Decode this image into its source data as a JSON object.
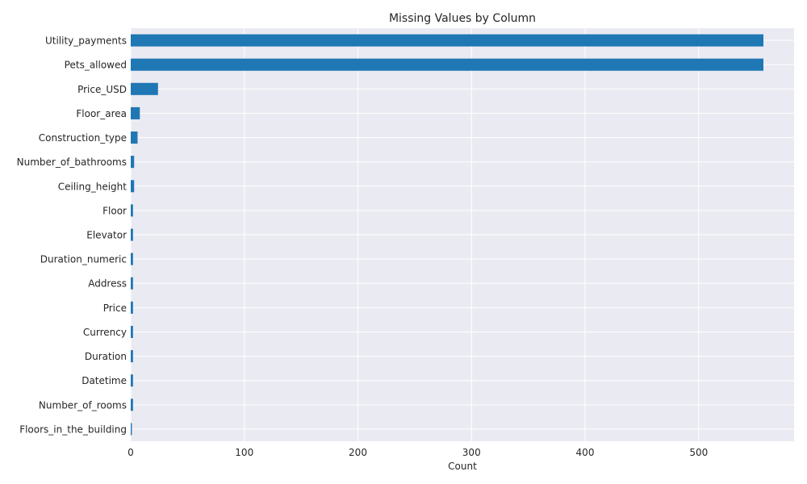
{
  "chart_data": {
    "type": "bar",
    "orientation": "horizontal",
    "title": "Missing Values by Column",
    "xlabel": "Count",
    "ylabel": "",
    "xlim": [
      0,
      584
    ],
    "xticks": [
      0,
      100,
      200,
      300,
      400,
      500
    ],
    "grid": true,
    "bar_color": "#1f77b4",
    "background_color": "#eaeaf2",
    "categories": [
      "Utility_payments",
      "Pets_allowed",
      "Price_USD",
      "Floor_area",
      "Construction_type",
      "Number_of_bathrooms",
      "Ceiling_height",
      "Floor",
      "Elevator",
      "Duration_numeric",
      "Address",
      "Price",
      "Currency",
      "Duration",
      "Datetime",
      "Number_of_rooms",
      "Floors_in_the_building"
    ],
    "values": [
      557,
      557,
      24,
      8,
      6,
      3,
      3,
      2,
      2,
      2,
      2,
      2,
      2,
      2,
      2,
      2,
      1
    ]
  }
}
